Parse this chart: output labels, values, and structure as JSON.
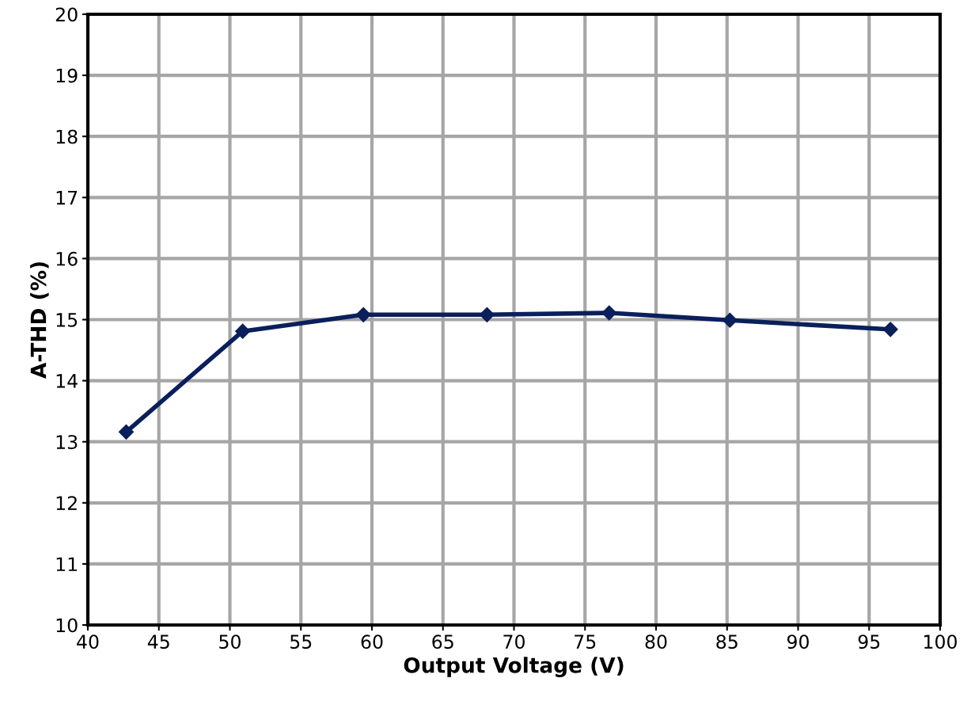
{
  "chart_data": {
    "type": "line",
    "xlabel": "Output Voltage (V)",
    "ylabel": "A-THD (%)",
    "x": [
      42.7,
      50.9,
      59.4,
      68.1,
      76.7,
      85.2,
      96.5
    ],
    "series": [
      {
        "color": "#0a1f5c",
        "values": [
          13.16,
          14.81,
          15.08,
          15.08,
          15.11,
          14.99,
          14.84
        ]
      }
    ],
    "xlim": [
      40,
      100
    ],
    "xticks": [
      40,
      45,
      50,
      55,
      60,
      65,
      70,
      75,
      80,
      85,
      90,
      95,
      100
    ],
    "ylim": [
      10,
      20
    ],
    "yticks": [
      10,
      11,
      12,
      13,
      14,
      15,
      16,
      17,
      18,
      19,
      20
    ],
    "grid": true,
    "marker": "diamond",
    "line_style": "solid"
  }
}
